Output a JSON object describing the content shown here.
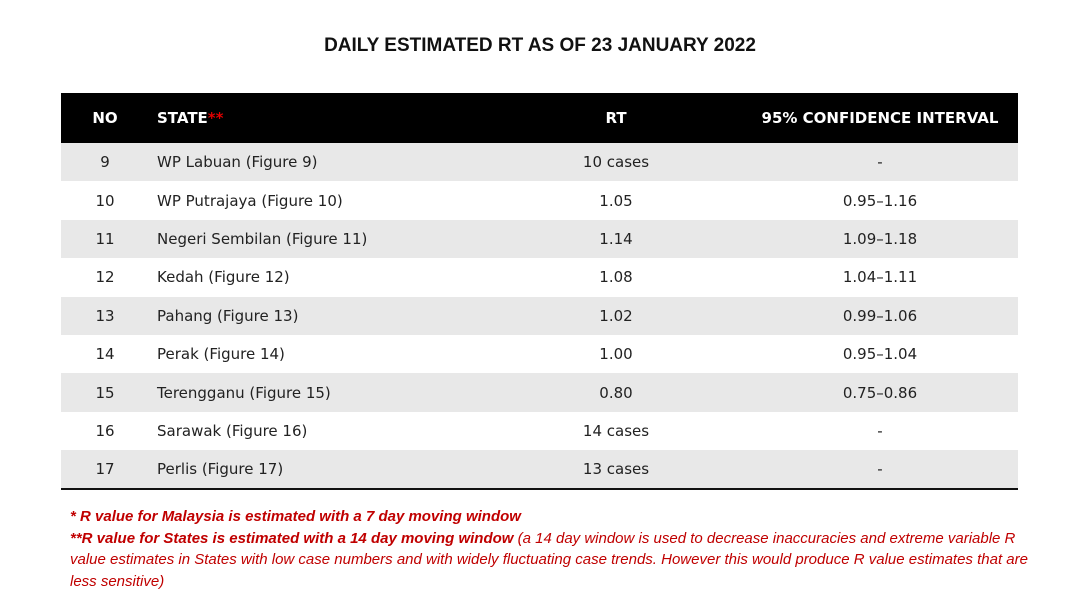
{
  "title": "DAILY ESTIMATED RT AS OF 23 JANUARY 2022",
  "headers": {
    "no": "NO",
    "state": "STATE",
    "state_mark": "**",
    "rt": "RT",
    "ci": "95% CONFIDENCE INTERVAL"
  },
  "rows": [
    {
      "no": "9",
      "state": "WP Labuan (Figure 9)",
      "rt": "10 cases",
      "ci": "-"
    },
    {
      "no": "10",
      "state": "WP Putrajaya (Figure 10)",
      "rt": "1.05",
      "ci": "0.95–1.16"
    },
    {
      "no": "11",
      "state": "Negeri Sembilan (Figure 11)",
      "rt": "1.14",
      "ci": "1.09–1.18"
    },
    {
      "no": "12",
      "state": "Kedah (Figure 12)",
      "rt": "1.08",
      "ci": "1.04–1.11"
    },
    {
      "no": "13",
      "state": "Pahang (Figure 13)",
      "rt": "1.02",
      "ci": "0.99–1.06"
    },
    {
      "no": "14",
      "state": "Perak (Figure 14)",
      "rt": "1.00",
      "ci": "0.95–1.04"
    },
    {
      "no": "15",
      "state": "Terengganu (Figure 15)",
      "rt": "0.80",
      "ci": "0.75–0.86"
    },
    {
      "no": "16",
      "state": "Sarawak (Figure 16)",
      "rt": "14 cases",
      "ci": "-"
    },
    {
      "no": "17",
      "state": "Perlis (Figure 17)",
      "rt": "13 cases",
      "ci": "-"
    }
  ],
  "notes": {
    "note1": "*  R value for Malaysia is estimated with a 7 day moving window",
    "note2_bold": "**R value for States is estimated with a 14 day moving window",
    "note2_rest": " (a 14 day window is used to decrease inaccuracies and extreme variable R value estimates in States with low case numbers and with widely fluctuating case trends. However this would produce R value estimates that are less sensitive)"
  },
  "colors": {
    "header_bg": "#000000",
    "stripe": "#e8e8e8",
    "note_red": "#c00000"
  }
}
